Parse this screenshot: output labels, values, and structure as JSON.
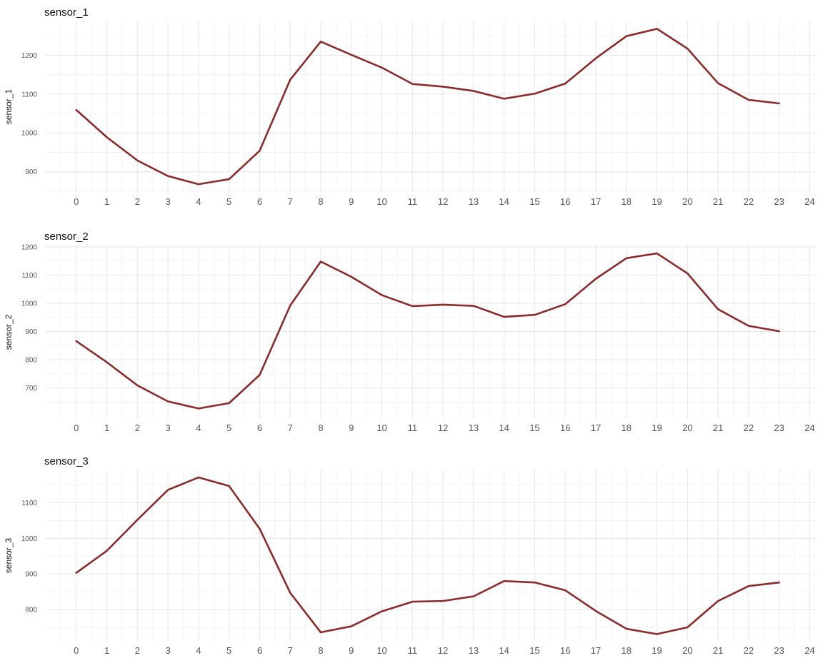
{
  "chart_data": [
    {
      "type": "line",
      "title": "sensor_1",
      "xlabel": "",
      "ylabel": "sensor_1",
      "x": [
        0,
        1,
        2,
        3,
        4,
        5,
        6,
        7,
        8,
        9,
        10,
        11,
        12,
        13,
        14,
        15,
        16,
        17,
        18,
        19,
        20,
        21,
        22,
        23
      ],
      "xticks": [
        0,
        1,
        2,
        3,
        4,
        5,
        6,
        7,
        8,
        9,
        10,
        11,
        12,
        13,
        14,
        15,
        16,
        17,
        18,
        19,
        20,
        21,
        22,
        23,
        24
      ],
      "xlim": [
        -1,
        24.2
      ],
      "ylim": [
        848,
        1287
      ],
      "yticks": [
        900,
        1000,
        1100,
        1200
      ],
      "grid": true,
      "series": [
        {
          "values": [
            1059,
            989,
            929,
            889,
            868,
            881,
            954,
            1137,
            1235,
            1201,
            1168,
            1126,
            1119,
            1108,
            1088,
            1101,
            1127,
            1192,
            1249,
            1268,
            1217,
            1128,
            1085,
            1076
          ]
        }
      ]
    },
    {
      "type": "line",
      "title": "sensor_2",
      "xlabel": "",
      "ylabel": "sensor_2",
      "x": [
        0,
        1,
        2,
        3,
        4,
        5,
        6,
        7,
        8,
        9,
        10,
        11,
        12,
        13,
        14,
        15,
        16,
        17,
        18,
        19,
        20,
        21,
        22,
        23
      ],
      "xticks": [
        0,
        1,
        2,
        3,
        4,
        5,
        6,
        7,
        8,
        9,
        10,
        11,
        12,
        13,
        14,
        15,
        16,
        17,
        18,
        19,
        20,
        21,
        22,
        23,
        24
      ],
      "xlim": [
        -1,
        24.2
      ],
      "ylim": [
        590,
        1205
      ],
      "yticks": [
        700,
        800,
        900,
        1000,
        1100,
        1200
      ],
      "grid": true,
      "series": [
        {
          "values": [
            866,
            791,
            709,
            652,
            627,
            646,
            746,
            992,
            1148,
            1094,
            1029,
            990,
            995,
            991,
            952,
            959,
            997,
            1087,
            1160,
            1177,
            1106,
            979,
            920,
            901
          ]
        }
      ]
    },
    {
      "type": "line",
      "title": "sensor_3",
      "xlabel": "",
      "ylabel": "sensor_3",
      "x": [
        0,
        1,
        2,
        3,
        4,
        5,
        6,
        7,
        8,
        9,
        10,
        11,
        12,
        13,
        14,
        15,
        16,
        17,
        18,
        19,
        20,
        21,
        22,
        23
      ],
      "xticks": [
        0,
        1,
        2,
        3,
        4,
        5,
        6,
        7,
        8,
        9,
        10,
        11,
        12,
        13,
        14,
        15,
        16,
        17,
        18,
        19,
        20,
        21,
        22,
        23,
        24
      ],
      "xlim": [
        -1,
        24.2
      ],
      "ylim": [
        712,
        1191
      ],
      "yticks": [
        800,
        900,
        1000,
        1100
      ],
      "grid": true,
      "series": [
        {
          "values": [
            903,
            965,
            1052,
            1136,
            1171,
            1147,
            1027,
            847,
            736,
            753,
            795,
            822,
            824,
            837,
            880,
            876,
            854,
            796,
            746,
            731,
            750,
            824,
            866,
            876
          ]
        }
      ]
    }
  ],
  "colors": {
    "line": "#8b2b2b"
  }
}
